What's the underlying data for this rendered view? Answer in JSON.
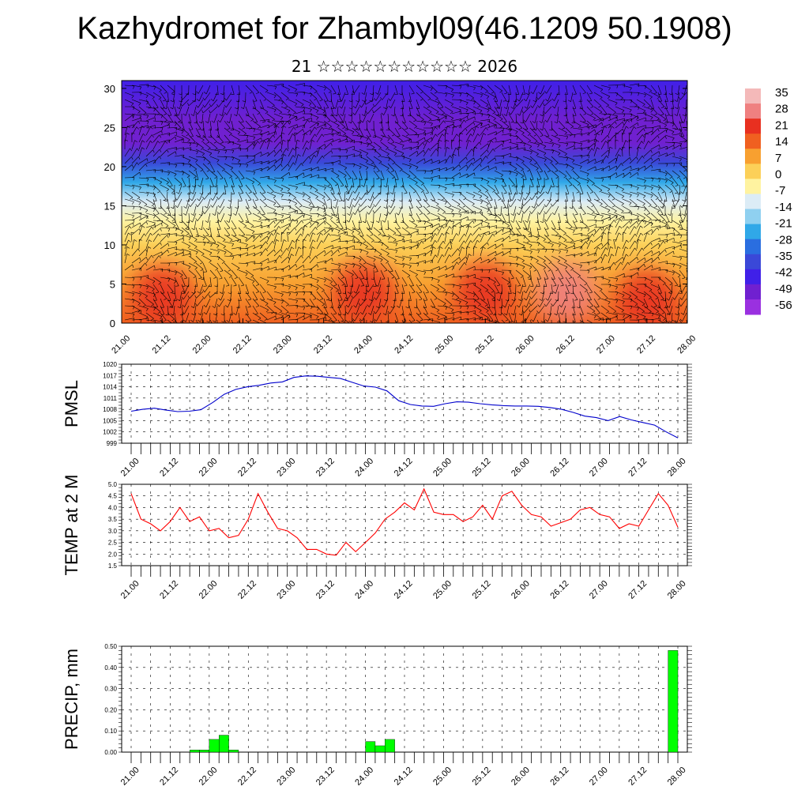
{
  "header": {
    "title": "Kazhydromet for Zhambyl09(46.1209 50.1908)",
    "subtitle": "21 ☆☆☆☆☆☆☆☆☆☆☆ 2026"
  },
  "chart_data": [
    {
      "type": "heatmap",
      "title": "",
      "x_tick_labels": [
        "21.00",
        "21.12",
        "22.00",
        "22.12",
        "23.00",
        "23.12",
        "24.00",
        "24.12",
        "25.00",
        "25.12",
        "26.00",
        "26.12",
        "27.00",
        "27.12",
        "28.00"
      ],
      "y_tick_labels": [
        "0",
        "5",
        "10",
        "15",
        "20",
        "25",
        "30"
      ],
      "ylim": [
        0,
        31
      ],
      "colorbar_labels": [
        "35",
        "28",
        "21",
        "14",
        "7",
        "0",
        "-7",
        "-14",
        "-21",
        "-28",
        "-35",
        "-42",
        "-49",
        "-56"
      ],
      "colorbar_colors": [
        "#f4b9b9",
        "#ef8080",
        "#e83020",
        "#f06020",
        "#f8a030",
        "#fcd058",
        "#fff3a0",
        "#dcecf6",
        "#8fd0f0",
        "#30a8e8",
        "#2a6ee0",
        "#3a48d8",
        "#4020e8",
        "#7020d0",
        "#9a30e0"
      ],
      "zones": [
        {
          "height": 0,
          "value": 14
        },
        {
          "height": 5,
          "value": 10
        },
        {
          "height": 10,
          "value": 3
        },
        {
          "height": 13,
          "value": -5
        },
        {
          "height": 15.5,
          "value": -14
        },
        {
          "height": 18,
          "value": -28
        },
        {
          "height": 20.5,
          "value": -42
        },
        {
          "height": 23,
          "value": -56
        },
        {
          "height": 26,
          "value": -52
        },
        {
          "height": 31,
          "value": -45
        }
      ],
      "warm_cores": [
        {
          "time": "21.12",
          "height": 3.5,
          "value": 21
        },
        {
          "time": "24.00",
          "height": 4,
          "value": 24
        },
        {
          "time": "25.12",
          "height": 4,
          "value": 24
        },
        {
          "time": "26.12",
          "height": 4,
          "value": 26
        },
        {
          "time": "27.12",
          "height": 3,
          "value": 23
        }
      ],
      "wind_barbs": true
    },
    {
      "type": "line",
      "ylabel": "PMSL",
      "ylim": [
        999,
        1020
      ],
      "y_ticks": [
        "1020",
        "1017",
        "1014",
        "1011",
        "1008",
        "1005",
        "1002",
        "999"
      ],
      "x_tick_labels": [
        "21.00",
        "21.12",
        "22.00",
        "22.12",
        "23.00",
        "23.12",
        "24.00",
        "24.12",
        "25.00",
        "25.12",
        "26.00",
        "26.12",
        "27.00",
        "27.12",
        "28.00"
      ],
      "series": [
        {
          "color": "#0000cc",
          "values": [
            1007.5,
            1008.0,
            1008.3,
            1007.8,
            1007.4,
            1007.5,
            1007.9,
            1009.8,
            1012.0,
            1013.3,
            1014.0,
            1014.4,
            1015.0,
            1015.3,
            1016.5,
            1016.9,
            1016.8,
            1016.5,
            1016.2,
            1015.2,
            1014.2,
            1013.9,
            1012.9,
            1010.3,
            1009.3,
            1008.9,
            1008.8,
            1009.5,
            1010.0,
            1009.9,
            1009.5,
            1009.2,
            1009.0,
            1008.9,
            1008.9,
            1008.8,
            1008.5,
            1008.0,
            1007.2,
            1006.2,
            1005.8,
            1005.0,
            1006.1,
            1005.2,
            1004.5,
            1003.8,
            1002.0,
            1000.4
          ]
        }
      ]
    },
    {
      "type": "line",
      "ylabel": "TEMP at 2 M",
      "ylim": [
        1.5,
        5.0
      ],
      "y_ticks": [
        "5.0",
        "4.5",
        "4.0",
        "3.5",
        "3.0",
        "2.5",
        "2.0",
        "1.5"
      ],
      "x_tick_labels": [
        "21.00",
        "21.12",
        "22.00",
        "22.12",
        "23.00",
        "23.12",
        "24.00",
        "24.12",
        "25.00",
        "25.12",
        "26.00",
        "26.12",
        "27.00",
        "27.12",
        "28.00"
      ],
      "series": [
        {
          "color": "#ff0000",
          "values": [
            4.6,
            3.5,
            3.3,
            3.0,
            3.4,
            4.0,
            3.4,
            3.6,
            3.0,
            3.1,
            2.7,
            2.8,
            3.5,
            4.6,
            3.8,
            3.1,
            3.0,
            2.7,
            2.2,
            2.2,
            2.0,
            1.95,
            2.5,
            2.1,
            2.5,
            2.9,
            3.5,
            3.8,
            4.2,
            3.9,
            4.8,
            3.8,
            3.7,
            3.7,
            3.4,
            3.6,
            4.1,
            3.5,
            4.5,
            4.7,
            4.1,
            3.7,
            3.6,
            3.2,
            3.35,
            3.5,
            3.9,
            4.0,
            3.7,
            3.6,
            3.1,
            3.3,
            3.2,
            3.9,
            4.6,
            4.1,
            3.15
          ]
        }
      ]
    },
    {
      "type": "bar",
      "ylabel": "PRECIP, mm",
      "ylim": [
        0,
        0.5
      ],
      "y_ticks": [
        "0.50",
        "0.40",
        "0.30",
        "0.20",
        "0.10",
        "0.00"
      ],
      "x_tick_labels": [
        "21.00",
        "21.12",
        "22.00",
        "22.12",
        "23.00",
        "23.12",
        "24.00",
        "24.12",
        "25.00",
        "25.12",
        "26.00",
        "26.12",
        "27.00",
        "27.12",
        "28.00"
      ],
      "series": [
        {
          "color": "#00ff00",
          "bars": [
            {
              "time": "21.18",
              "value": 0.01
            },
            {
              "time": "21.21",
              "value": 0.01
            },
            {
              "time": "22.00",
              "value": 0.06
            },
            {
              "time": "22.03",
              "value": 0.08
            },
            {
              "time": "22.06",
              "value": 0.01
            },
            {
              "time": "24.00",
              "value": 0.05
            },
            {
              "time": "24.03",
              "value": 0.03
            },
            {
              "time": "24.06",
              "value": 0.06
            },
            {
              "time": "27.21",
              "value": 0.48
            }
          ]
        }
      ]
    }
  ]
}
